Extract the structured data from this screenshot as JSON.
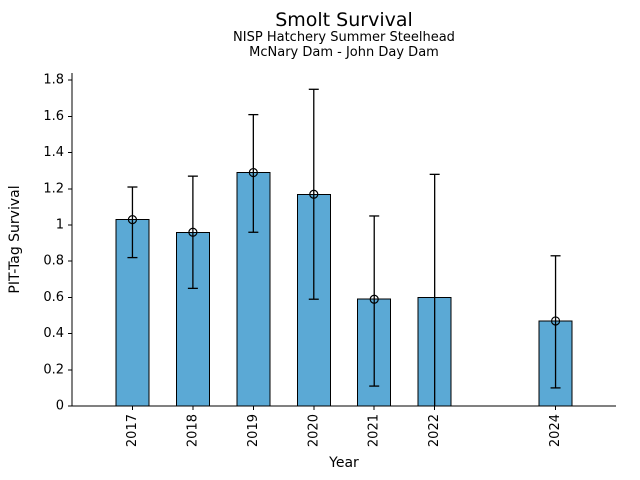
{
  "title": "Smolt Survival",
  "chart_data": {
    "type": "bar",
    "title": "Smolt Survival",
    "subtitle_line1": "NISP Hatchery Summer Steelhead",
    "subtitle_line2": "McNary Dam - John Day Dam",
    "xlabel": "Year",
    "ylabel": "PIT-Tag Survival",
    "categories": [
      "2017",
      "2018",
      "2019",
      "2020",
      "2021",
      "2022",
      "2024"
    ],
    "values": [
      1.03,
      0.96,
      1.29,
      1.17,
      0.59,
      0.6,
      0.47
    ],
    "error_low": [
      0.82,
      0.65,
      0.96,
      0.59,
      0.11,
      0.0,
      0.1
    ],
    "error_high": [
      1.21,
      1.27,
      1.61,
      1.75,
      1.05,
      1.28,
      0.83
    ],
    "error_low_capped": [
      true,
      true,
      true,
      true,
      true,
      false,
      true
    ],
    "markers": [
      true,
      true,
      true,
      true,
      true,
      false,
      true
    ],
    "note": "2023 has no bar; 2022 bar has no circle marker and its lower error whisker extends to the axis without a cap",
    "xlim": [
      2016,
      2025
    ],
    "ylim": [
      0,
      1.84
    ],
    "yticks": [
      "0",
      "0.2",
      "0.4",
      "0.6",
      "0.8",
      "1",
      "1.2",
      "1.4",
      "1.6",
      "1.8"
    ],
    "bar_color": "#5ba9d5",
    "edge_color": "#000000",
    "text_color": "#000000",
    "grid": false,
    "legend": null
  }
}
